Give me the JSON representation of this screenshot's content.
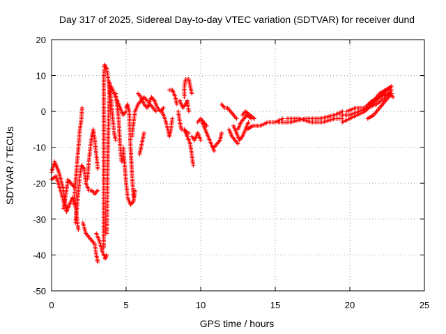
{
  "chart_data": {
    "type": "scatter",
    "title": "Day 317 of 2025, Sidereal Day-to-day VTEC variation (SDTVAR) for receiver dund",
    "xlabel": "GPS time / hours",
    "ylabel": "SDTVAR / TECUs",
    "xlim": [
      0,
      25
    ],
    "ylim": [
      -50,
      20
    ],
    "xticks": [
      0,
      5,
      10,
      15,
      20,
      25
    ],
    "yticks": [
      -50,
      -40,
      -30,
      -20,
      -10,
      0,
      10,
      20
    ],
    "grid": true,
    "marker": "+",
    "series_color": "#ff0000",
    "series": [
      {
        "name": "SDTVAR",
        "paths": [
          [
            [
              0.0,
              -17
            ],
            [
              0.2,
              -14
            ],
            [
              0.5,
              -17
            ],
            [
              0.8,
              -22
            ],
            [
              1.0,
              -28
            ],
            [
              1.2,
              -26
            ],
            [
              1.4,
              -24
            ],
            [
              1.6,
              -26
            ],
            [
              1.7,
              -30
            ],
            [
              1.8,
              -33
            ]
          ],
          [
            [
              0.0,
              -19
            ],
            [
              0.3,
              -18
            ],
            [
              0.6,
              -22
            ],
            [
              0.8,
              -25
            ],
            [
              1.0,
              -27
            ]
          ],
          [
            [
              0.8,
              -27
            ],
            [
              1.0,
              -22
            ],
            [
              1.1,
              -19
            ],
            [
              1.3,
              -20
            ],
            [
              1.5,
              -21
            ]
          ],
          [
            [
              1.5,
              -26
            ],
            [
              1.6,
              -20
            ],
            [
              1.7,
              -15
            ],
            [
              1.8,
              -10
            ],
            [
              1.9,
              -5
            ],
            [
              2.0,
              -2
            ],
            [
              2.05,
              1
            ]
          ],
          [
            [
              1.6,
              -31
            ],
            [
              1.7,
              -27
            ],
            [
              1.8,
              -22
            ],
            [
              1.9,
              -18
            ],
            [
              2.0,
              -15
            ]
          ],
          [
            [
              2.0,
              -15
            ],
            [
              2.2,
              -16
            ],
            [
              2.3,
              -20
            ],
            [
              2.5,
              -22
            ],
            [
              2.7,
              -22
            ],
            [
              2.9,
              -23
            ],
            [
              3.1,
              -22
            ]
          ],
          [
            [
              2.4,
              -19
            ],
            [
              2.5,
              -14
            ],
            [
              2.6,
              -10
            ],
            [
              2.7,
              -7
            ],
            [
              2.8,
              -5
            ],
            [
              2.9,
              -8
            ],
            [
              3.0,
              -12
            ],
            [
              3.1,
              -16
            ]
          ],
          [
            [
              2.1,
              -31
            ],
            [
              2.3,
              -34
            ],
            [
              2.5,
              -35
            ],
            [
              2.7,
              -36
            ],
            [
              2.9,
              -37
            ],
            [
              3.0,
              -40
            ],
            [
              3.1,
              -42
            ]
          ],
          [
            [
              3.0,
              -34
            ],
            [
              3.2,
              -36
            ],
            [
              3.4,
              -39
            ],
            [
              3.6,
              -41
            ],
            [
              3.7,
              -40
            ]
          ],
          [
            [
              3.5,
              -38
            ],
            [
              3.5,
              -30
            ],
            [
              3.5,
              -20
            ],
            [
              3.5,
              -12
            ],
            [
              3.5,
              -4
            ],
            [
              3.5,
              4
            ],
            [
              3.5,
              10
            ],
            [
              3.55,
              13
            ]
          ],
          [
            [
              3.55,
              13
            ],
            [
              3.7,
              12
            ],
            [
              3.8,
              9
            ],
            [
              3.9,
              6
            ],
            [
              4.0,
              3
            ],
            [
              4.1,
              -2
            ],
            [
              4.2,
              -6
            ],
            [
              4.3,
              -8
            ]
          ],
          [
            [
              3.7,
              -34
            ],
            [
              3.75,
              -20
            ],
            [
              3.8,
              -6
            ],
            [
              3.85,
              2
            ],
            [
              3.9,
              8
            ]
          ],
          [
            [
              4.0,
              7
            ],
            [
              4.2,
              5
            ],
            [
              4.4,
              3
            ],
            [
              4.6,
              1
            ],
            [
              4.8,
              -1
            ],
            [
              5.0,
              0
            ]
          ],
          [
            [
              4.3,
              5
            ],
            [
              4.5,
              -2
            ],
            [
              4.6,
              -10
            ],
            [
              4.7,
              -14
            ]
          ],
          [
            [
              4.8,
              -10
            ],
            [
              4.9,
              -15
            ],
            [
              5.0,
              -20
            ],
            [
              5.1,
              -24
            ],
            [
              5.3,
              -26
            ],
            [
              5.5,
              -25
            ],
            [
              5.6,
              -22
            ]
          ],
          [
            [
              5.0,
              1
            ],
            [
              5.1,
              2
            ],
            [
              5.2,
              0
            ],
            [
              5.3,
              -10
            ],
            [
              5.4,
              -18
            ],
            [
              5.5,
              -24
            ]
          ],
          [
            [
              5.4,
              -7
            ],
            [
              5.5,
              -3
            ],
            [
              5.6,
              0
            ],
            [
              5.8,
              2
            ],
            [
              6.0,
              3
            ],
            [
              6.2,
              4
            ],
            [
              6.4,
              3
            ]
          ],
          [
            [
              5.8,
              5
            ],
            [
              6.0,
              4
            ],
            [
              6.2,
              2
            ],
            [
              6.4,
              1
            ],
            [
              6.6,
              2
            ],
            [
              6.8,
              1
            ],
            [
              7.0,
              0
            ]
          ],
          [
            [
              5.9,
              -12
            ],
            [
              6.0,
              -10
            ],
            [
              6.1,
              -8
            ],
            [
              6.2,
              -6
            ]
          ],
          [
            [
              6.5,
              2
            ],
            [
              6.7,
              4
            ],
            [
              6.9,
              3
            ],
            [
              7.1,
              1
            ],
            [
              7.3,
              0
            ],
            [
              7.5,
              1
            ]
          ],
          [
            [
              7.4,
              0
            ],
            [
              7.6,
              -2
            ],
            [
              7.8,
              -5
            ],
            [
              7.9,
              -7
            ],
            [
              8.0,
              -5
            ],
            [
              8.1,
              -2
            ]
          ],
          [
            [
              7.9,
              6
            ],
            [
              8.1,
              6
            ],
            [
              8.3,
              4
            ],
            [
              8.4,
              2
            ]
          ],
          [
            [
              8.5,
              0
            ],
            [
              8.6,
              -3
            ],
            [
              8.7,
              -5
            ],
            [
              8.9,
              -5
            ],
            [
              9.1,
              -6
            ],
            [
              9.2,
              -6
            ]
          ],
          [
            [
              8.6,
              3
            ],
            [
              8.8,
              1
            ],
            [
              9.0,
              2
            ],
            [
              9.1,
              3
            ],
            [
              9.2,
              0
            ]
          ],
          [
            [
              8.9,
              4
            ],
            [
              8.9,
              7
            ],
            [
              9.0,
              9
            ],
            [
              9.2,
              9
            ],
            [
              9.3,
              7
            ],
            [
              9.4,
              5
            ]
          ],
          [
            [
              8.9,
              -5
            ],
            [
              9.1,
              -7
            ],
            [
              9.3,
              -9
            ],
            [
              9.4,
              -12
            ],
            [
              9.5,
              -15
            ]
          ],
          [
            [
              9.4,
              -7
            ],
            [
              9.6,
              -8
            ],
            [
              9.8,
              -6
            ],
            [
              10.0,
              -8
            ]
          ],
          [
            [
              9.8,
              -3
            ],
            [
              10.0,
              -2
            ],
            [
              10.2,
              -3
            ],
            [
              10.4,
              -4
            ]
          ],
          [
            [
              10.1,
              -3
            ],
            [
              10.3,
              -5
            ],
            [
              10.5,
              -7
            ],
            [
              10.7,
              -9
            ],
            [
              10.9,
              -11
            ]
          ],
          [
            [
              10.9,
              -10
            ],
            [
              11.1,
              -9
            ],
            [
              11.3,
              -8
            ],
            [
              11.4,
              -6
            ]
          ],
          [
            [
              11.4,
              2
            ],
            [
              11.6,
              1
            ],
            [
              11.8,
              1
            ],
            [
              12.0,
              0
            ],
            [
              12.2,
              -1
            ],
            [
              12.4,
              -2
            ]
          ],
          [
            [
              12.2,
              -4
            ],
            [
              12.4,
              -6
            ],
            [
              12.6,
              -8
            ],
            [
              12.8,
              -7
            ],
            [
              13.0,
              -5
            ],
            [
              13.2,
              -3
            ]
          ],
          [
            [
              12.5,
              -5
            ],
            [
              12.7,
              -3
            ],
            [
              12.9,
              -2
            ],
            [
              13.1,
              -1
            ],
            [
              13.4,
              -2
            ]
          ],
          [
            [
              11.9,
              -5
            ],
            [
              12.1,
              -7
            ],
            [
              12.3,
              -8
            ],
            [
              12.5,
              -9
            ]
          ],
          [
            [
              12.8,
              -1
            ],
            [
              13.0,
              0
            ],
            [
              13.3,
              -1
            ],
            [
              13.6,
              -2
            ]
          ],
          [
            [
              13.1,
              -5
            ],
            [
              13.5,
              -4
            ],
            [
              14.0,
              -4
            ],
            [
              14.5,
              -3
            ],
            [
              15.0,
              -3
            ],
            [
              15.5,
              -2
            ]
          ],
          [
            [
              15.2,
              -3
            ],
            [
              16.0,
              -3
            ],
            [
              17.0,
              -2
            ],
            [
              18.0,
              -2
            ],
            [
              19.0,
              -1
            ],
            [
              19.5,
              0
            ]
          ],
          [
            [
              15.8,
              -2
            ],
            [
              16.6,
              -2
            ],
            [
              17.4,
              -3
            ],
            [
              18.2,
              -3
            ],
            [
              19.0,
              -2
            ],
            [
              19.5,
              -2
            ]
          ],
          [
            [
              19.5,
              -3
            ],
            [
              20.0,
              -2
            ],
            [
              20.5,
              -1
            ],
            [
              21.0,
              0
            ],
            [
              21.5,
              2
            ],
            [
              22.0,
              4
            ],
            [
              22.5,
              6
            ],
            [
              22.8,
              7
            ]
          ],
          [
            [
              19.4,
              -1
            ],
            [
              20.0,
              -1
            ],
            [
              20.6,
              0
            ],
            [
              21.2,
              1
            ],
            [
              21.8,
              2
            ],
            [
              22.4,
              4
            ],
            [
              22.8,
              6
            ]
          ],
          [
            [
              19.8,
              0
            ],
            [
              20.4,
              1
            ],
            [
              21.0,
              1
            ],
            [
              21.5,
              3
            ],
            [
              22.0,
              4
            ],
            [
              22.6,
              5
            ],
            [
              22.9,
              4
            ]
          ],
          [
            [
              21.2,
              -2
            ],
            [
              21.6,
              -1
            ],
            [
              22.0,
              1
            ],
            [
              22.4,
              3
            ],
            [
              22.8,
              5
            ]
          ],
          [
            [
              21.3,
              2
            ],
            [
              21.6,
              3
            ],
            [
              22.0,
              5
            ],
            [
              22.4,
              6
            ],
            [
              22.8,
              7
            ]
          ]
        ]
      }
    ]
  }
}
